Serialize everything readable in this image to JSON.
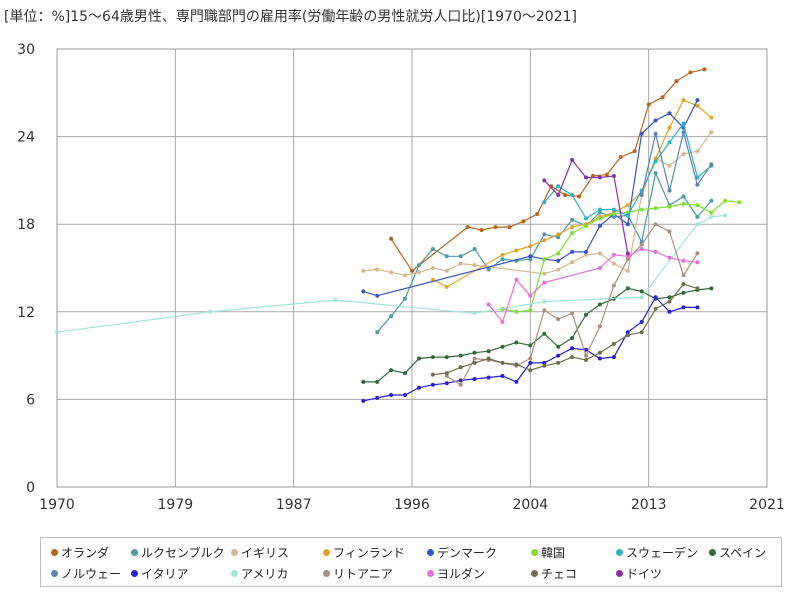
{
  "chart_data": {
    "type": "line",
    "title": "[単位：%]15～64歳男性、専門職部門の雇用率(労働年齢の男性就労人口比)[1970～2021]",
    "xlabel": "",
    "ylabel": "",
    "xlim": [
      1970,
      2021
    ],
    "ylim": [
      0,
      30
    ],
    "x_ticks": [
      "1970",
      "1979",
      "1987",
      "1996",
      "2004",
      "2013",
      "2021"
    ],
    "x_tick_values": [
      1970,
      1978.5,
      1987,
      1995.5,
      2004,
      2012.5,
      2021
    ],
    "y_ticks": [
      "0",
      "6",
      "12",
      "18",
      "24",
      "30"
    ],
    "y_tick_values": [
      0,
      6,
      12,
      18,
      24,
      30
    ],
    "grid": true,
    "legend_position": "bottom",
    "series": [
      {
        "name": "オランダ",
        "color": "#b8651a",
        "points": [
          [
            1994,
            17.0
          ],
          [
            1995.5,
            14.8
          ],
          [
            1999.5,
            17.8
          ],
          [
            2000.5,
            17.6
          ],
          [
            2001.5,
            17.8
          ],
          [
            2002.5,
            17.8
          ],
          [
            2003.5,
            18.2
          ],
          [
            2004.5,
            18.7
          ],
          [
            2005.5,
            20.6
          ],
          [
            2006.5,
            20.0
          ],
          [
            2007.5,
            19.9
          ],
          [
            2008.5,
            21.3
          ],
          [
            2009.5,
            21.4
          ],
          [
            2010.5,
            22.6
          ],
          [
            2011.5,
            23.0
          ],
          [
            2012.5,
            26.2
          ],
          [
            2013.5,
            26.7
          ],
          [
            2014.5,
            27.8
          ],
          [
            2015.5,
            28.4
          ],
          [
            2016.5,
            28.6
          ]
        ]
      },
      {
        "name": "ルクセンブルク",
        "color": "#4a9ba3",
        "points": [
          [
            1993,
            10.6
          ],
          [
            1994,
            11.7
          ],
          [
            1995,
            12.9
          ],
          [
            1996,
            15.2
          ],
          [
            1997,
            16.3
          ],
          [
            1998,
            15.8
          ],
          [
            1999,
            15.8
          ],
          [
            2000,
            16.3
          ],
          [
            2001,
            14.9
          ],
          [
            2002,
            15.6
          ],
          [
            2003,
            15.5
          ],
          [
            2004,
            15.6
          ],
          [
            2005,
            17.3
          ],
          [
            2006,
            17.1
          ],
          [
            2007,
            18.3
          ],
          [
            2008,
            17.9
          ],
          [
            2009,
            18.8
          ],
          [
            2010,
            18.5
          ],
          [
            2011,
            18.6
          ],
          [
            2012,
            16.8
          ],
          [
            2013,
            21.5
          ],
          [
            2014,
            19.3
          ],
          [
            2015,
            19.9
          ],
          [
            2016,
            18.5
          ],
          [
            2017,
            19.6
          ]
        ]
      },
      {
        "name": "イギリス",
        "color": "#d4b88f",
        "points": [
          [
            1992,
            14.8
          ],
          [
            1993,
            14.9
          ],
          [
            1994,
            14.7
          ],
          [
            1995,
            14.5
          ],
          [
            1996,
            14.7
          ],
          [
            1997,
            15.0
          ],
          [
            1998,
            14.8
          ],
          [
            1999,
            15.3
          ],
          [
            2000,
            15.2
          ],
          [
            2005,
            14.6
          ],
          [
            2006,
            14.9
          ],
          [
            2007,
            15.4
          ],
          [
            2008,
            15.9
          ],
          [
            2009,
            16.0
          ],
          [
            2010,
            15.3
          ],
          [
            2011,
            14.8
          ],
          [
            2012,
            20.0
          ],
          [
            2013,
            22.5
          ],
          [
            2014,
            22.0
          ],
          [
            2015,
            22.8
          ],
          [
            2016,
            23.0
          ],
          [
            2017,
            24.3
          ]
        ]
      },
      {
        "name": "フィンランド",
        "color": "#e0a528",
        "points": [
          [
            1997,
            14.2
          ],
          [
            1998,
            13.7
          ],
          [
            2002,
            15.9
          ],
          [
            2003,
            16.2
          ],
          [
            2004,
            16.5
          ],
          [
            2005,
            16.9
          ],
          [
            2006,
            17.3
          ],
          [
            2007,
            17.8
          ],
          [
            2008,
            18.0
          ],
          [
            2009,
            18.5
          ],
          [
            2010,
            18.8
          ],
          [
            2011,
            19.3
          ],
          [
            2012,
            20.2
          ],
          [
            2013,
            22.5
          ],
          [
            2014,
            24.6
          ],
          [
            2015,
            26.5
          ],
          [
            2016,
            26.1
          ],
          [
            2017,
            25.3
          ]
        ]
      },
      {
        "name": "デンマーク",
        "color": "#3a55c4",
        "points": [
          [
            1992,
            13.4
          ],
          [
            1993,
            13.1
          ],
          [
            2004,
            15.8
          ],
          [
            2005,
            15.6
          ],
          [
            2006,
            15.5
          ],
          [
            2007,
            16.1
          ],
          [
            2008,
            16.1
          ],
          [
            2009,
            17.9
          ],
          [
            2010,
            18.7
          ],
          [
            2011,
            18.0
          ],
          [
            2012,
            24.2
          ],
          [
            2013,
            25.1
          ],
          [
            2014,
            25.6
          ],
          [
            2015,
            24.6
          ],
          [
            2016,
            26.5
          ]
        ]
      },
      {
        "name": "韓国",
        "color": "#80e02f",
        "points": [
          [
            2002,
            12.2
          ],
          [
            2003,
            12.0
          ],
          [
            2004,
            12.1
          ],
          [
            2005,
            15.6
          ],
          [
            2006,
            16.0
          ],
          [
            2007,
            17.4
          ],
          [
            2008,
            17.9
          ],
          [
            2009,
            18.4
          ],
          [
            2010,
            18.7
          ],
          [
            2011,
            18.8
          ],
          [
            2012,
            19.0
          ],
          [
            2013,
            19.1
          ],
          [
            2014,
            19.2
          ],
          [
            2015,
            19.4
          ],
          [
            2016,
            19.3
          ],
          [
            2017,
            18.8
          ],
          [
            2018,
            19.6
          ],
          [
            2019,
            19.5
          ]
        ]
      },
      {
        "name": "スウェーデン",
        "color": "#2bb4c9",
        "points": [
          [
            2005,
            19.5
          ],
          [
            2006,
            20.6
          ],
          [
            2007,
            20.0
          ],
          [
            2008,
            18.4
          ],
          [
            2009,
            19.0
          ],
          [
            2010,
            19.0
          ],
          [
            2011,
            18.6
          ],
          [
            2012,
            20.3
          ],
          [
            2013,
            22.3
          ],
          [
            2014,
            23.6
          ],
          [
            2015,
            24.9
          ],
          [
            2016,
            21.2
          ],
          [
            2017,
            22.0
          ]
        ]
      },
      {
        "name": "スペイン",
        "color": "#2f6b3a",
        "points": [
          [
            1992,
            7.2
          ],
          [
            1993,
            7.2
          ],
          [
            1994,
            8.0
          ],
          [
            1995,
            7.8
          ],
          [
            1996,
            8.8
          ],
          [
            1997,
            8.9
          ],
          [
            1998,
            8.9
          ],
          [
            1999,
            9.0
          ],
          [
            2000,
            9.2
          ],
          [
            2001,
            9.3
          ],
          [
            2002,
            9.6
          ],
          [
            2003,
            9.9
          ],
          [
            2004,
            9.7
          ],
          [
            2005,
            10.5
          ],
          [
            2006,
            9.6
          ],
          [
            2007,
            10.2
          ],
          [
            2008,
            11.8
          ],
          [
            2009,
            12.5
          ],
          [
            2010,
            12.9
          ],
          [
            2011,
            13.6
          ],
          [
            2012,
            13.4
          ],
          [
            2013,
            12.9
          ],
          [
            2014,
            13.0
          ],
          [
            2015,
            13.3
          ],
          [
            2016,
            13.5
          ],
          [
            2017,
            13.6
          ]
        ]
      },
      {
        "name": "ノルウェー",
        "color": "#5b86b3",
        "points": [
          [
            2012,
            20.0
          ],
          [
            2013,
            24.2
          ],
          [
            2014,
            20.3
          ],
          [
            2015,
            24.3
          ],
          [
            2016,
            20.7
          ],
          [
            2017,
            22.1
          ]
        ]
      },
      {
        "name": "イタリア",
        "color": "#2a1fd6",
        "points": [
          [
            1992,
            5.9
          ],
          [
            1993,
            6.1
          ],
          [
            1994,
            6.3
          ],
          [
            1995,
            6.3
          ],
          [
            1996,
            6.8
          ],
          [
            1997,
            7.0
          ],
          [
            1998,
            7.1
          ],
          [
            1999,
            7.3
          ],
          [
            2000,
            7.4
          ],
          [
            2001,
            7.5
          ],
          [
            2002,
            7.6
          ],
          [
            2003,
            7.2
          ],
          [
            2004,
            8.5
          ],
          [
            2005,
            8.5
          ],
          [
            2006,
            9.0
          ],
          [
            2007,
            9.5
          ],
          [
            2008,
            9.4
          ],
          [
            2009,
            8.8
          ],
          [
            2010,
            8.9
          ],
          [
            2011,
            10.6
          ],
          [
            2012,
            11.3
          ],
          [
            2013,
            13.0
          ],
          [
            2014,
            12.0
          ],
          [
            2015,
            12.3
          ],
          [
            2016,
            12.3
          ]
        ]
      },
      {
        "name": "アメリカ",
        "color": "#9ee6db",
        "points": [
          [
            1970,
            10.6
          ],
          [
            1981,
            12.0
          ],
          [
            1990,
            12.8
          ],
          [
            2000,
            11.9
          ],
          [
            2005,
            12.7
          ],
          [
            2012,
            13.0
          ],
          [
            2016,
            18.0
          ],
          [
            2017,
            18.5
          ],
          [
            2018,
            18.6
          ]
        ]
      },
      {
        "name": "リトアニア",
        "color": "#a89080",
        "points": [
          [
            1998,
            7.6
          ],
          [
            1999,
            7.0
          ],
          [
            2000,
            8.8
          ],
          [
            2001,
            8.7
          ],
          [
            2002,
            8.5
          ],
          [
            2003,
            8.3
          ],
          [
            2004,
            8.8
          ],
          [
            2005,
            12.1
          ],
          [
            2006,
            11.5
          ],
          [
            2007,
            11.9
          ],
          [
            2008,
            9.0
          ],
          [
            2009,
            11.0
          ],
          [
            2010,
            13.8
          ],
          [
            2011,
            15.6
          ],
          [
            2012,
            16.6
          ],
          [
            2013,
            18.0
          ],
          [
            2014,
            17.5
          ],
          [
            2015,
            14.5
          ],
          [
            2016,
            16.0
          ]
        ]
      },
      {
        "name": "ヨルダン",
        "color": "#e86fd8",
        "points": [
          [
            2001,
            12.5
          ],
          [
            2002,
            11.3
          ],
          [
            2003,
            14.2
          ],
          [
            2004,
            13.1
          ],
          [
            2005,
            14.0
          ],
          [
            2009,
            15.0
          ],
          [
            2010,
            15.9
          ],
          [
            2011,
            15.8
          ],
          [
            2012,
            16.3
          ],
          [
            2013,
            16.1
          ],
          [
            2014,
            15.7
          ],
          [
            2015,
            15.5
          ],
          [
            2016,
            15.4
          ]
        ]
      },
      {
        "name": "チェコ",
        "color": "#6e6e4e",
        "points": [
          [
            1997,
            7.7
          ],
          [
            1998,
            7.8
          ],
          [
            1999,
            8.2
          ],
          [
            2000,
            8.5
          ],
          [
            2001,
            8.8
          ],
          [
            2002,
            8.5
          ],
          [
            2003,
            8.4
          ],
          [
            2004,
            8.0
          ],
          [
            2005,
            8.3
          ],
          [
            2006,
            8.5
          ],
          [
            2007,
            8.9
          ],
          [
            2008,
            8.7
          ],
          [
            2009,
            9.2
          ],
          [
            2010,
            9.8
          ],
          [
            2011,
            10.4
          ],
          [
            2012,
            10.6
          ],
          [
            2013,
            12.2
          ],
          [
            2014,
            12.7
          ],
          [
            2015,
            13.9
          ],
          [
            2016,
            13.6
          ]
        ]
      },
      {
        "name": "ドイツ",
        "color": "#8e2fa6",
        "points": [
          [
            2005,
            21.0
          ],
          [
            2006,
            20.0
          ],
          [
            2007,
            22.4
          ],
          [
            2008,
            21.2
          ],
          [
            2009,
            21.2
          ],
          [
            2010,
            21.3
          ],
          [
            2011,
            16.0
          ]
        ]
      }
    ]
  }
}
